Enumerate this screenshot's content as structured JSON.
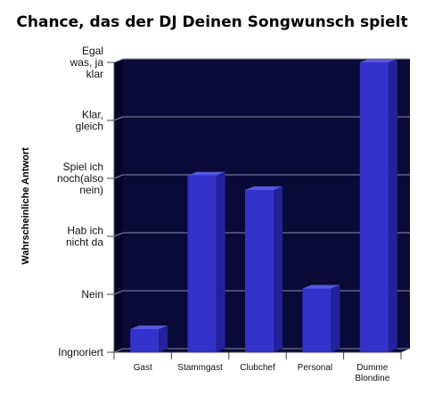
{
  "chart_data": {
    "type": "bar",
    "title": "Chance, das der DJ Deinen Songwunsch spielt",
    "xlabel": "",
    "ylabel": "Wahrscheinliche Antwort",
    "y_tick_labels": [
      [
        "Ingnoriert"
      ],
      [
        "Nein"
      ],
      [
        "Hab ich",
        "nicht da"
      ],
      [
        "Spiel ich",
        "noch(also",
        "nein)"
      ],
      [
        "Klar,",
        "gleich"
      ],
      [
        "Egal",
        "was, ja",
        "klar"
      ]
    ],
    "ylim": [
      0,
      5
    ],
    "categories": [
      [
        "Gast"
      ],
      [
        "Stammgast"
      ],
      [
        "Clubchef"
      ],
      [
        "Personal"
      ],
      [
        "Dumme",
        "Blondine"
      ]
    ],
    "values": [
      0.4,
      3.05,
      2.8,
      1.1,
      5.0
    ],
    "colors": {
      "background": "#0a0a38",
      "bar_front": "#3333cc",
      "bar_side": "#22229a",
      "bar_top": "#5555ee",
      "grid": "#8a8aa8"
    },
    "grid": true
  }
}
